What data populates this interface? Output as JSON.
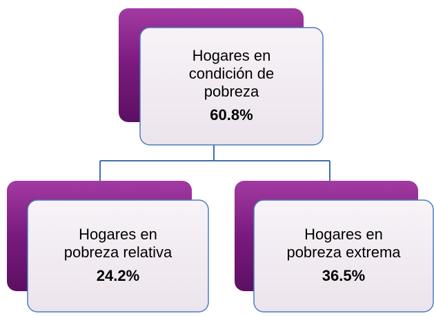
{
  "nodes": [
    {
      "label": [
        "Hogares en",
        "condición de",
        "pobreza"
      ],
      "value": "60.8%"
    },
    {
      "label": [
        "Hogares en",
        "pobreza relativa"
      ],
      "value": "24.2%"
    },
    {
      "label": [
        "Hogares en",
        "pobreza extrema"
      ],
      "value": "36.5%"
    }
  ]
}
